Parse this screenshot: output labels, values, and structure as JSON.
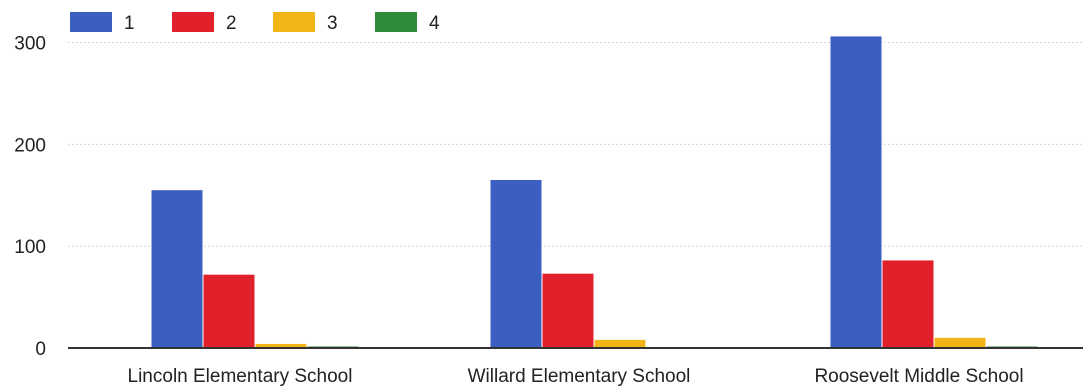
{
  "chart_data": {
    "type": "bar",
    "title": "",
    "xlabel": "",
    "ylabel": "",
    "categories": [
      "Lincoln Elementary School",
      "Willard Elementary School",
      "Roosevelt Middle School"
    ],
    "series": [
      {
        "name": "1",
        "color": "#3b5fc0",
        "values": [
          155,
          165,
          306
        ]
      },
      {
        "name": "2",
        "color": "#e0202a",
        "values": [
          72,
          73,
          86
        ]
      },
      {
        "name": "3",
        "color": "#f2b518",
        "values": [
          4,
          8,
          10
        ]
      },
      {
        "name": "4",
        "color": "#2e8b3a",
        "values": [
          1,
          0,
          1
        ]
      }
    ],
    "ylim": [
      0,
      330
    ],
    "yticks": [
      0,
      100,
      200,
      300
    ],
    "grid": true,
    "legend_position": "top-left"
  }
}
